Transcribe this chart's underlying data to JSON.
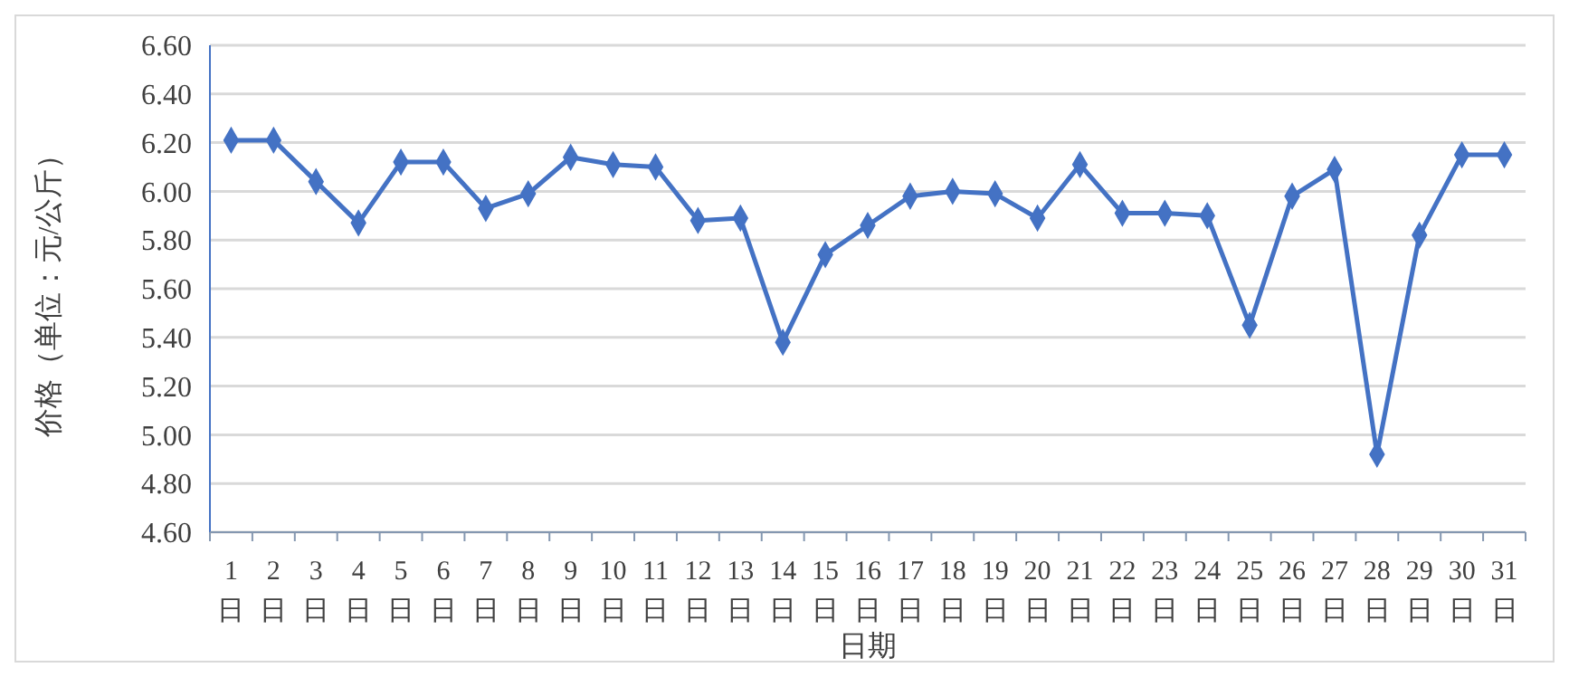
{
  "chart_data": {
    "type": "line",
    "xlabel": "日期",
    "ylabel": "价格（单位：元/公斤）",
    "categories": [
      "1日",
      "2日",
      "3日",
      "4日",
      "5日",
      "6日",
      "7日",
      "8日",
      "9日",
      "10日",
      "11日",
      "12日",
      "13日",
      "14日",
      "15日",
      "16日",
      "17日",
      "18日",
      "19日",
      "20日",
      "21日",
      "22日",
      "23日",
      "24日",
      "25日",
      "26日",
      "27日",
      "28日",
      "29日",
      "30日",
      "31日"
    ],
    "series": [
      {
        "color": "#4472c4",
        "values": [
          6.21,
          6.21,
          6.04,
          5.87,
          6.12,
          6.12,
          5.93,
          5.99,
          6.14,
          6.11,
          6.1,
          5.88,
          5.89,
          5.38,
          5.74,
          5.86,
          5.98,
          6.0,
          5.99,
          5.89,
          6.11,
          5.91,
          5.91,
          5.9,
          5.45,
          5.98,
          6.09,
          4.92,
          5.82,
          6.15,
          6.15
        ]
      }
    ],
    "ylim": [
      4.6,
      6.6
    ],
    "yticks": [
      {
        "value": 4.6,
        "label": "4.60"
      },
      {
        "value": 4.8,
        "label": "4.80"
      },
      {
        "value": 5.0,
        "label": "5.00"
      },
      {
        "value": 5.2,
        "label": "5.20"
      },
      {
        "value": 5.4,
        "label": "5.40"
      },
      {
        "value": 5.6,
        "label": "5.60"
      },
      {
        "value": 5.8,
        "label": "5.80"
      },
      {
        "value": 6.0,
        "label": "6.00"
      },
      {
        "value": 6.2,
        "label": "6.20"
      },
      {
        "value": 6.4,
        "label": "6.40"
      },
      {
        "value": 6.6,
        "label": "6.60"
      }
    ],
    "grid": "y",
    "marker": "diamond",
    "line_style": "solid"
  }
}
